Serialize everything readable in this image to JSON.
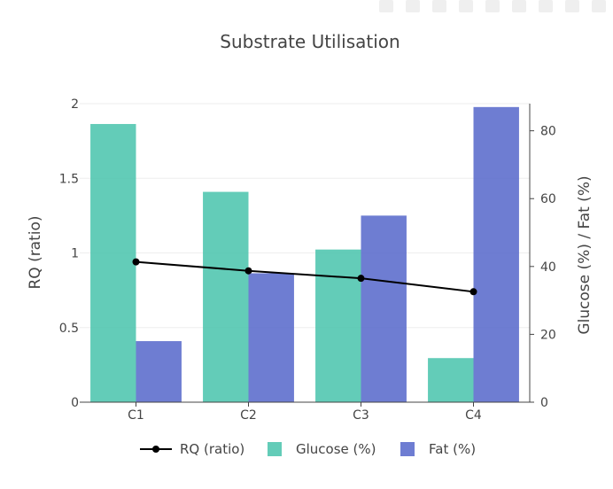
{
  "chart_data": {
    "type": "bar",
    "title": "Substrate Utilisation",
    "categories": [
      "C1",
      "C2",
      "C3",
      "C4"
    ],
    "series": [
      {
        "name": "Glucose (%)",
        "axis": "right",
        "kind": "bar",
        "color": "#4DC5AE",
        "values": [
          82,
          62,
          45,
          13
        ]
      },
      {
        "name": "Fat (%)",
        "axis": "right",
        "kind": "bar",
        "color": "#5A6BCC",
        "values": [
          18,
          38,
          55,
          87
        ]
      },
      {
        "name": "RQ (ratio)",
        "axis": "left",
        "kind": "line",
        "color": "#000000",
        "values": [
          0.94,
          0.88,
          0.83,
          0.74
        ]
      }
    ],
    "ylabel": "RQ (ratio)",
    "y2label": "Glucose (%) / Fat (%)",
    "ylim": [
      0,
      2
    ],
    "y2lim": [
      0,
      88
    ],
    "yticks": [
      0,
      0.5,
      1,
      1.5,
      2
    ],
    "yticklabels": [
      "0",
      "0.5",
      "1",
      "1.5",
      "2"
    ],
    "y2ticks": [
      0,
      20,
      40,
      60,
      80
    ],
    "y2ticklabels": [
      "0",
      "20",
      "40",
      "60",
      "80"
    ],
    "legend": [
      "RQ (ratio)",
      "Glucose (%)",
      "Fat (%)"
    ],
    "legend_position": "bottom-center",
    "grid": true
  }
}
